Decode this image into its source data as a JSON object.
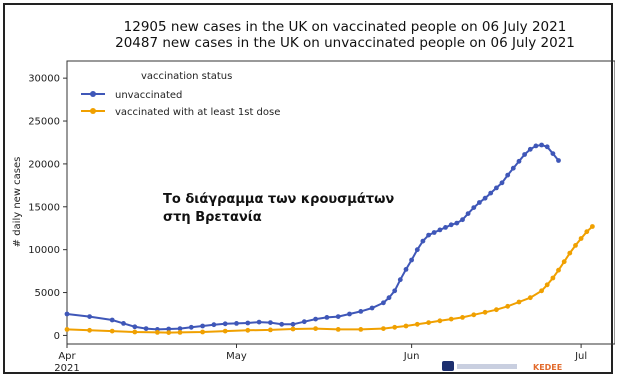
{
  "chart_data": {
    "type": "line",
    "title_lines": [
      "12905 new cases in the UK on vaccinated people on 06 July 2021",
      "20487 new cases in the UK on unvaccinated people on 06 July 2021"
    ],
    "ylabel": "# daily new cases",
    "xlabel": "",
    "ylim": [
      -1000,
      32000
    ],
    "xlim": [
      0,
      97
    ],
    "y_ticks": [
      0,
      5000,
      10000,
      15000,
      20000,
      25000,
      30000
    ],
    "x_ticks": [
      {
        "x": 0,
        "label": "Apr",
        "sub": "2021"
      },
      {
        "x": 30,
        "label": "May",
        "sub": ""
      },
      {
        "x": 61,
        "label": "Jun",
        "sub": ""
      },
      {
        "x": 91,
        "label": "Jul",
        "sub": ""
      }
    ],
    "legend": {
      "title": "vaccination status",
      "placement": "upper-left"
    },
    "grid": false,
    "series": [
      {
        "name": "unvaccinated",
        "color": "#3f57b8",
        "marker": "circle",
        "points": [
          [
            0,
            2500
          ],
          [
            4,
            2200
          ],
          [
            8,
            1800
          ],
          [
            10,
            1400
          ],
          [
            12,
            1000
          ],
          [
            14,
            800
          ],
          [
            16,
            700
          ],
          [
            18,
            750
          ],
          [
            20,
            800
          ],
          [
            22,
            950
          ],
          [
            24,
            1100
          ],
          [
            26,
            1250
          ],
          [
            28,
            1350
          ],
          [
            30,
            1400
          ],
          [
            32,
            1450
          ],
          [
            34,
            1550
          ],
          [
            36,
            1500
          ],
          [
            38,
            1300
          ],
          [
            40,
            1300
          ],
          [
            42,
            1600
          ],
          [
            44,
            1900
          ],
          [
            46,
            2100
          ],
          [
            48,
            2200
          ],
          [
            50,
            2500
          ],
          [
            52,
            2800
          ],
          [
            54,
            3200
          ],
          [
            56,
            3800
          ],
          [
            57,
            4400
          ],
          [
            58,
            5200
          ],
          [
            59,
            6500
          ],
          [
            60,
            7700
          ],
          [
            61,
            8800
          ],
          [
            62,
            10000
          ],
          [
            63,
            11000
          ],
          [
            64,
            11700
          ],
          [
            65,
            12000
          ],
          [
            66,
            12300
          ],
          [
            67,
            12600
          ],
          [
            68,
            12900
          ],
          [
            69,
            13100
          ],
          [
            70,
            13500
          ],
          [
            71,
            14200
          ],
          [
            72,
            14900
          ],
          [
            73,
            15500
          ],
          [
            74,
            16000
          ],
          [
            75,
            16600
          ],
          [
            76,
            17200
          ],
          [
            77,
            17800
          ],
          [
            78,
            18700
          ],
          [
            79,
            19500
          ],
          [
            80,
            20300
          ],
          [
            81,
            21100
          ],
          [
            82,
            21700
          ],
          [
            83,
            22100
          ],
          [
            84,
            22200
          ],
          [
            85,
            22000
          ],
          [
            86,
            21200
          ],
          [
            87,
            20400
          ]
        ]
      },
      {
        "name": "vaccinated with at least 1st dose",
        "color": "#f0a000",
        "marker": "circle",
        "points": [
          [
            0,
            700
          ],
          [
            4,
            600
          ],
          [
            8,
            500
          ],
          [
            12,
            400
          ],
          [
            16,
            350
          ],
          [
            18,
            330
          ],
          [
            20,
            350
          ],
          [
            24,
            400
          ],
          [
            28,
            500
          ],
          [
            32,
            600
          ],
          [
            36,
            650
          ],
          [
            40,
            750
          ],
          [
            44,
            800
          ],
          [
            48,
            700
          ],
          [
            52,
            700
          ],
          [
            56,
            800
          ],
          [
            58,
            950
          ],
          [
            60,
            1100
          ],
          [
            62,
            1300
          ],
          [
            64,
            1500
          ],
          [
            66,
            1700
          ],
          [
            68,
            1900
          ],
          [
            70,
            2100
          ],
          [
            72,
            2400
          ],
          [
            74,
            2700
          ],
          [
            76,
            3000
          ],
          [
            78,
            3400
          ],
          [
            80,
            3900
          ],
          [
            82,
            4400
          ],
          [
            84,
            5200
          ],
          [
            85,
            5900
          ],
          [
            86,
            6700
          ],
          [
            87,
            7600
          ],
          [
            88,
            8600
          ],
          [
            89,
            9600
          ],
          [
            90,
            10500
          ],
          [
            91,
            11300
          ],
          [
            92,
            12100
          ],
          [
            93,
            12700
          ]
        ]
      }
    ],
    "annotation": {
      "lines": [
        "Το διάγραμμα των κρουσμάτων",
        "στη Βρετανία"
      ]
    },
    "watermark": "KEDEE"
  }
}
